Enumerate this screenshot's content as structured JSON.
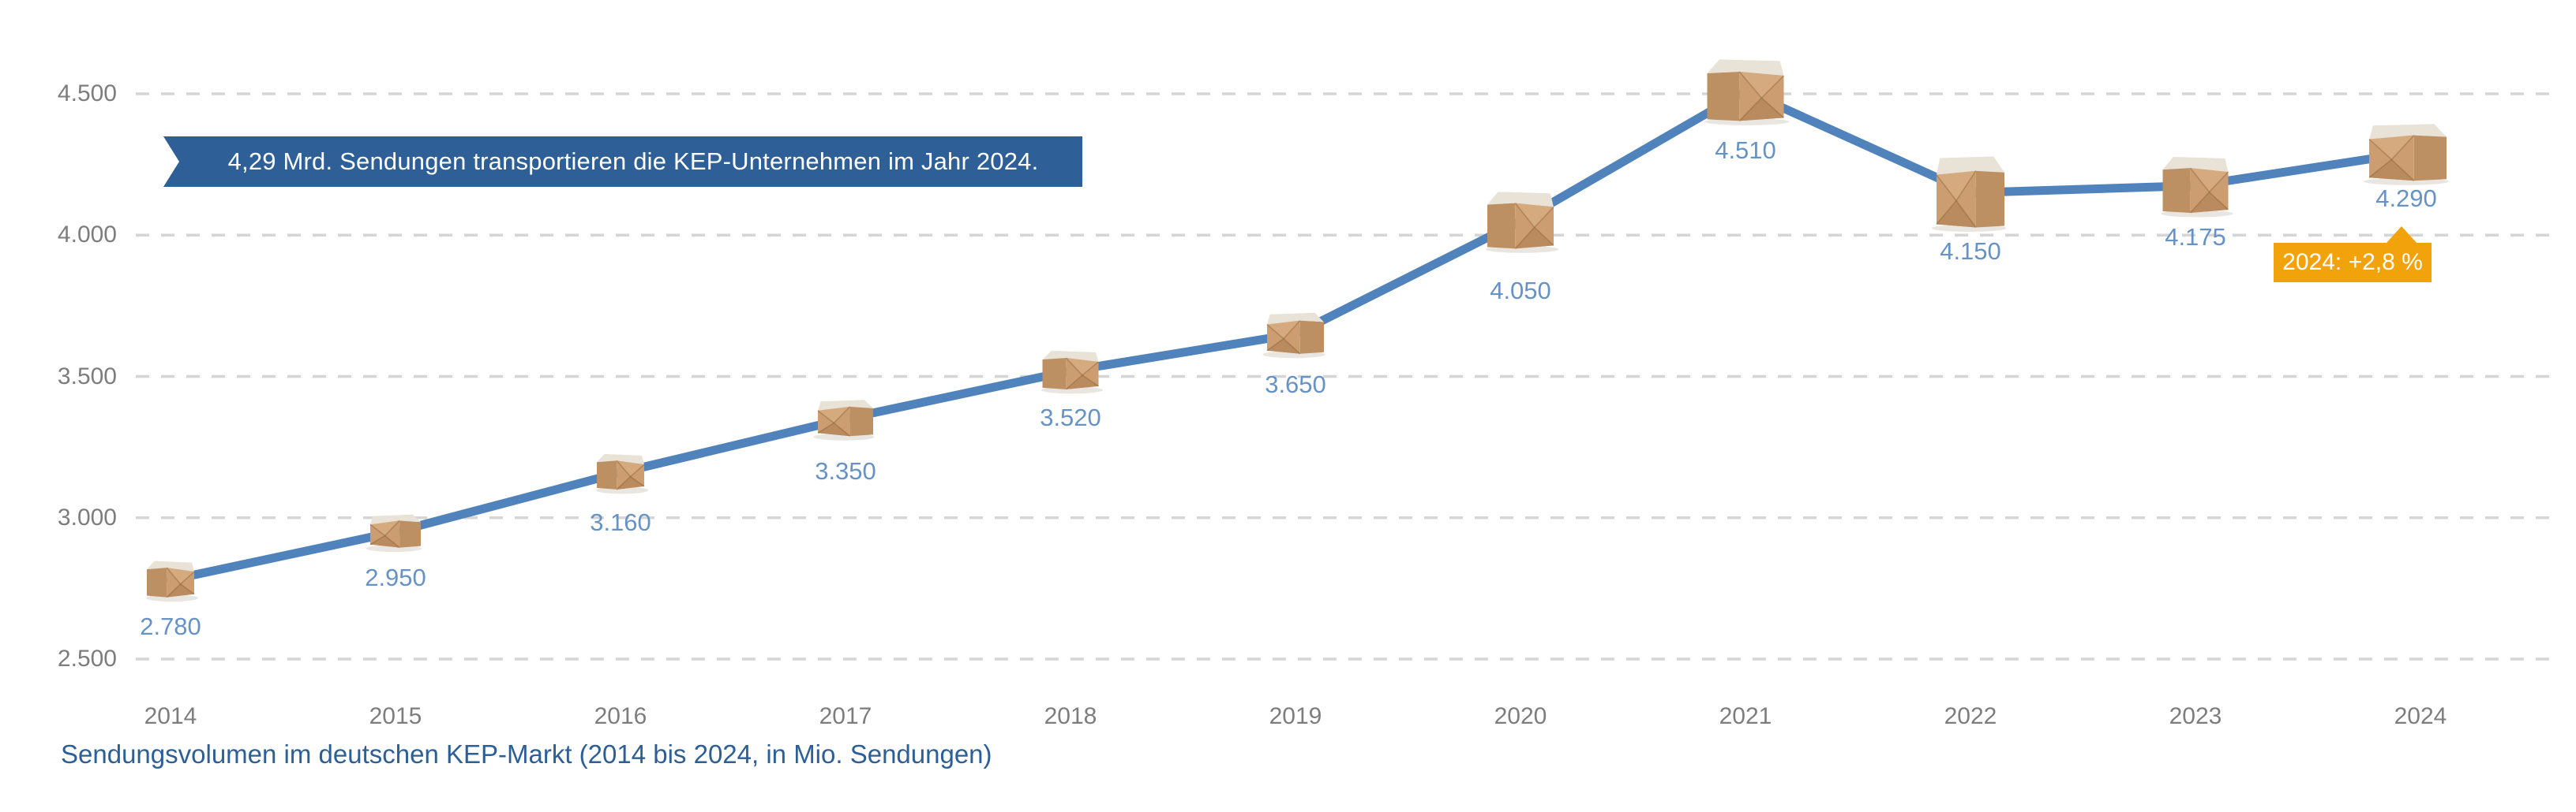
{
  "banner": {
    "text": "4,29 Mrd. Sendungen transportieren die KEP-Unternehmen im Jahr 2024.",
    "bg_color": "#2E5F96",
    "text_color": "#FFFFFF"
  },
  "badge": {
    "text": "2024: +2,8 %",
    "bg_color": "#F2A30B",
    "text_color": "#FFFFFF"
  },
  "caption": {
    "text": "Sendungsvolumen im deutschen KEP-Markt (2014 bis 2024, in Mio. Sendungen)",
    "color": "#2C5F96"
  },
  "chart_data": {
    "type": "line",
    "title": "Sendungsvolumen im deutschen KEP-Markt",
    "categories": [
      "2014",
      "2015",
      "2016",
      "2017",
      "2018",
      "2019",
      "2020",
      "2021",
      "2022",
      "2023",
      "2024"
    ],
    "series": [
      {
        "name": "Sendungsvolumen in Mio. Sendungen",
        "values": [
          2780,
          2950,
          3160,
          3350,
          3520,
          3650,
          4050,
          4510,
          4150,
          4175,
          4290
        ]
      }
    ],
    "point_labels": [
      "2.780",
      "2.950",
      "3.160",
      "3.350",
      "3.520",
      "3.650",
      "4.050",
      "4.510",
      "4.150",
      "4.175",
      "4.290"
    ],
    "ylim": [
      2500,
      4500
    ],
    "yticks": [
      {
        "value": 4500,
        "label": "4.500"
      },
      {
        "value": 4000,
        "label": "4.000"
      },
      {
        "value": 3500,
        "label": "3.500"
      },
      {
        "value": 3000,
        "label": "3.000"
      },
      {
        "value": 2500,
        "label": "2.500"
      }
    ],
    "grid": "horizontal-dashed",
    "legend_position": "none",
    "marker": "cardboard-parcel-icon",
    "line_color": "#5083BC",
    "point_label_color": "#6792C6",
    "axis_tick_color": "#7D7D7D",
    "gridline_color": "#D5D5D5"
  }
}
